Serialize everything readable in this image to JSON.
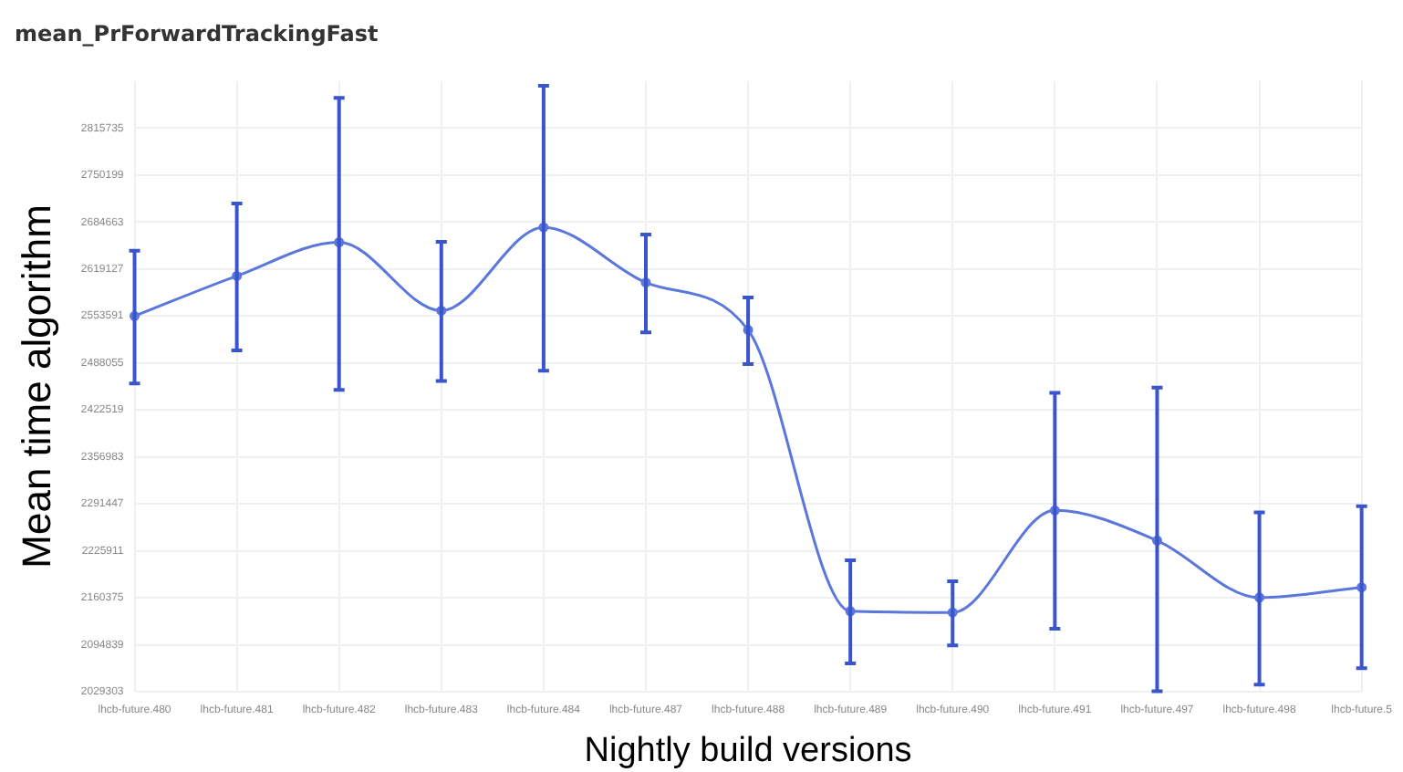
{
  "chart_data": {
    "type": "line",
    "title": "mean_PrForwardTrackingFast",
    "xlabel": "Nightly build versions",
    "ylabel": "Mean time algorithm",
    "categories": [
      "lhcb-future.480",
      "lhcb-future.481",
      "lhcb-future.482",
      "lhcb-future.483",
      "lhcb-future.484",
      "lhcb-future.487",
      "lhcb-future.488",
      "lhcb-future.489",
      "lhcb-future.490",
      "lhcb-future.491",
      "lhcb-future.497",
      "lhcb-future.498",
      "lhcb-future.5"
    ],
    "series": [
      {
        "color": "#5b77dc",
        "values": [
          2553400,
          2609300,
          2656300,
          2560900,
          2677100,
          2600100,
          2534000,
          2141500,
          2139800,
          2282200,
          2240200,
          2160600,
          2174900
        ],
        "errors": [
          [
            2459400,
            2644500
          ],
          [
            2505600,
            2710500
          ],
          [
            2450400,
            2857900
          ],
          [
            2462900,
            2657000
          ],
          [
            2477000,
            2874800
          ],
          [
            2530700,
            2667100
          ],
          [
            2486300,
            2579200
          ],
          [
            2068700,
            2212600
          ],
          [
            2093800,
            2183200
          ],
          [
            2117200,
            2446100
          ],
          [
            2030000,
            2453700
          ],
          [
            2039300,
            2279600
          ],
          [
            2062000,
            2288000
          ]
        ]
      }
    ],
    "ylim": [
      2029303,
      2881271
    ],
    "yticks": [
      2029303,
      2094839,
      2160375,
      2225911,
      2291447,
      2356983,
      2422519,
      2488055,
      2553591,
      2619127,
      2684663,
      2750199,
      2815735
    ],
    "grid": true,
    "legend": false,
    "marker": "circle",
    "line_style": "solid"
  }
}
